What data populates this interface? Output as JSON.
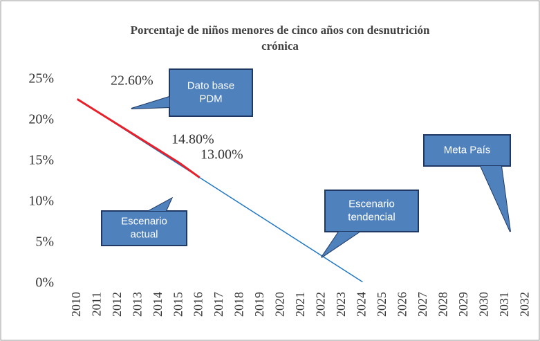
{
  "chart_data": {
    "type": "line",
    "title": [
      "Porcentaje de niños menores de cinco años con desnutrición",
      "crónica"
    ],
    "categories": [
      "2010",
      "2011",
      "2012",
      "2013",
      "2014",
      "2015",
      "2016",
      "2017",
      "2018",
      "2019",
      "2020",
      "2021",
      "2022",
      "2023",
      "2024",
      "2025",
      "2026",
      "2027",
      "2028",
      "2029",
      "2030",
      "2031",
      "2032"
    ],
    "series": [
      {
        "name": "Escenario tendencial",
        "color": "#1f77c4",
        "width": 1.5,
        "values": [
          22.6,
          21.0,
          19.4,
          17.8,
          16.2,
          14.6,
          13.0,
          11.4,
          9.8,
          8.2,
          6.6,
          5.0,
          3.4,
          1.8,
          0.2,
          null,
          null,
          null,
          null,
          null,
          null,
          null,
          null
        ]
      },
      {
        "name": "Escenario actual",
        "color": "#e8202a",
        "width": 3,
        "values": [
          22.6,
          21.04,
          19.48,
          17.92,
          16.36,
          14.8,
          13.0,
          null,
          null,
          null,
          null,
          null,
          null,
          null,
          null,
          null,
          null,
          null,
          null,
          null,
          null,
          null,
          null
        ],
        "value_labels": [
          "22.60%",
          null,
          null,
          null,
          null,
          "14.80%",
          "13.00%",
          null,
          null,
          null,
          null,
          null,
          null,
          null,
          null,
          null,
          null,
          null,
          null,
          null,
          null,
          null,
          null
        ]
      }
    ],
    "ylim": [
      0,
      25
    ],
    "yticks": [
      {
        "value": 0,
        "label": "0%"
      },
      {
        "value": 5,
        "label": "5%"
      },
      {
        "value": 10,
        "label": "10%"
      },
      {
        "value": 15,
        "label": "15%"
      },
      {
        "value": 20,
        "label": "20%"
      },
      {
        "value": 25,
        "label": "25%"
      }
    ],
    "annotations": [
      {
        "lines": [
          "Dato base",
          "PDM"
        ]
      },
      {
        "lines": [
          "Escenario",
          "actual"
        ]
      },
      {
        "lines": [
          "Escenario",
          "tendencial"
        ]
      },
      {
        "lines": [
          "Meta  País"
        ]
      }
    ]
  }
}
